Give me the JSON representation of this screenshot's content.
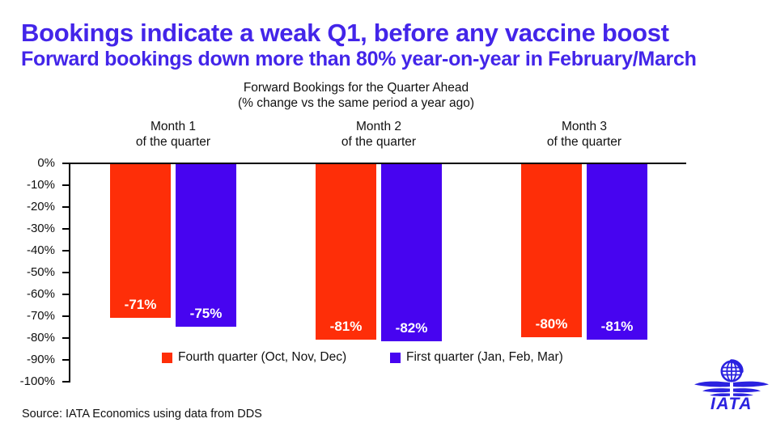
{
  "page": {
    "title": "Bookings indicate a weak Q1, before any vaccine boost",
    "subtitle": "Forward bookings down more than 80% year-on-year in February/March",
    "source": "Source: IATA Economics using data from DDS",
    "logo_text": "IATA"
  },
  "colors": {
    "title": "#4325e9",
    "red": "#fe2e08",
    "blue": "#4704f0",
    "logo": "#2b22e0",
    "axis": "#000000"
  },
  "chart_data": {
    "type": "bar",
    "title": "Forward Bookings for the Quarter Ahead",
    "subtitle": "(% change vs the same period a year ago)",
    "categories": [
      "Month 1",
      "Month 2",
      "Month 3"
    ],
    "category_suffix": "of the quarter",
    "series": [
      {
        "name": "Fourth quarter (Oct, Nov, Dec)",
        "color_key": "red",
        "values": [
          -71,
          -81,
          -80
        ],
        "labels": [
          "-71%",
          "-81%",
          "-80%"
        ]
      },
      {
        "name": "First quarter (Jan, Feb, Mar)",
        "color_key": "blue",
        "values": [
          -75,
          -82,
          -81
        ],
        "labels": [
          "-75%",
          "-82%",
          "-81%"
        ]
      }
    ],
    "y_ticks": [
      "0%",
      "-10%",
      "-20%",
      "-30%",
      "-40%",
      "-50%",
      "-60%",
      "-70%",
      "-80%",
      "-90%",
      "-100%"
    ],
    "ylim": [
      0,
      -100
    ],
    "xlabel": "",
    "ylabel": "",
    "grid": false,
    "legend_position": "bottom-inside"
  }
}
